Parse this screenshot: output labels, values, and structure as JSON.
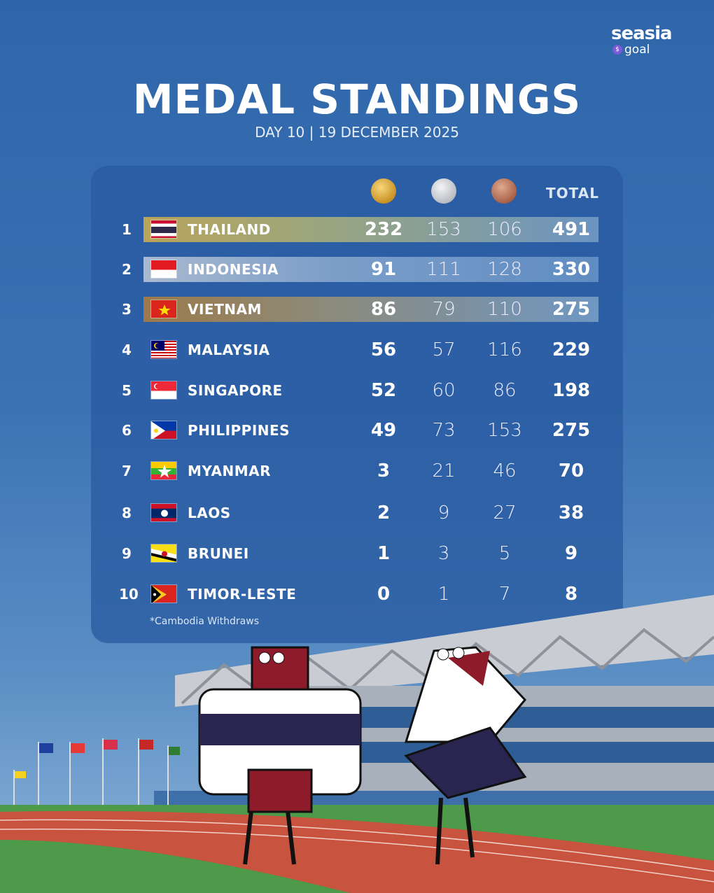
{
  "brand": {
    "name": "seasia",
    "sub": "goal"
  },
  "title": "MEDAL STANDINGS",
  "subtitle": "DAY 10 | 19 DECEMBER 2025",
  "columns": {
    "gold": "gold-medal",
    "silver": "silver-medal",
    "bronze": "bronze-medal",
    "total": "TOTAL"
  },
  "rows": [
    {
      "rank": "1",
      "country": "THAILAND",
      "gold": "232",
      "silver": "153",
      "bronze": "106",
      "total": "491",
      "highlight": "gold"
    },
    {
      "rank": "2",
      "country": "INDONESIA",
      "gold": "91",
      "silver": "111",
      "bronze": "128",
      "total": "330",
      "highlight": "silver"
    },
    {
      "rank": "3",
      "country": "VIETNAM",
      "gold": "86",
      "silver": "79",
      "bronze": "110",
      "total": "275",
      "highlight": "bronze"
    },
    {
      "rank": "4",
      "country": "MALAYSIA",
      "gold": "56",
      "silver": "57",
      "bronze": "116",
      "total": "229"
    },
    {
      "rank": "5",
      "country": "SINGAPORE",
      "gold": "52",
      "silver": "60",
      "bronze": "86",
      "total": "198"
    },
    {
      "rank": "6",
      "country": "PHILIPPINES",
      "gold": "49",
      "silver": "73",
      "bronze": "153",
      "total": "275"
    },
    {
      "rank": "7",
      "country": "MYANMAR",
      "gold": "3",
      "silver": "21",
      "bronze": "46",
      "total": "70"
    },
    {
      "rank": "8",
      "country": "LAOS",
      "gold": "2",
      "silver": "9",
      "bronze": "27",
      "total": "38"
    },
    {
      "rank": "9",
      "country": "BRUNEI",
      "gold": "1",
      "silver": "3",
      "bronze": "5",
      "total": "9"
    },
    {
      "rank": "10",
      "country": "TIMOR-LESTE",
      "gold": "0",
      "silver": "1",
      "bronze": "7",
      "total": "8"
    }
  ],
  "note": "*Cambodia Withdraws",
  "mascot_badge": "THAILAND"
}
